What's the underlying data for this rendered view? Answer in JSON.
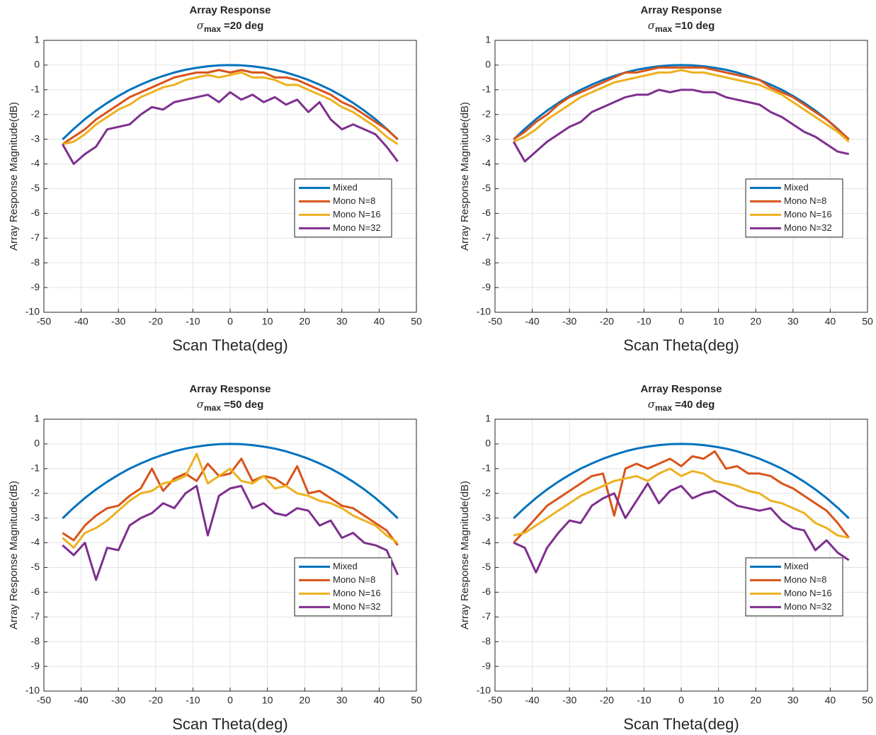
{
  "chart_data": [
    {
      "type": "line",
      "title": "Array Response",
      "subtitle": [
        "σ",
        "max",
        "=20 deg"
      ],
      "xlabel": "Scan Theta(deg)",
      "ylabel": "Array Response Magnitude(dB)",
      "x": [
        -45,
        -42,
        -39,
        -36,
        -33,
        -30,
        -27,
        -24,
        -21,
        -18,
        -15,
        -12,
        -9,
        -6,
        -3,
        0,
        3,
        6,
        9,
        12,
        15,
        18,
        21,
        24,
        27,
        30,
        33,
        36,
        39,
        42,
        45
      ],
      "series": [
        {
          "name": "Mixed",
          "color": "#0072BD",
          "values": [
            -3.01,
            -2.58,
            -2.19,
            -1.84,
            -1.53,
            -1.25,
            -1,
            -0.79,
            -0.6,
            -0.44,
            -0.3,
            -0.19,
            -0.11,
            -0.05,
            -0.01,
            0,
            -0.01,
            -0.05,
            -0.11,
            -0.19,
            -0.3,
            -0.44,
            -0.6,
            -0.79,
            -1,
            -1.25,
            -1.53,
            -1.84,
            -2.19,
            -2.58,
            -3.01
          ]
        },
        {
          "name": "Mono N=8",
          "color": "#D95319",
          "values": [
            -3.2,
            -2.9,
            -2.6,
            -2.2,
            -1.9,
            -1.6,
            -1.3,
            -1.1,
            -0.9,
            -0.7,
            -0.5,
            -0.4,
            -0.3,
            -0.3,
            -0.2,
            -0.3,
            -0.2,
            -0.3,
            -0.3,
            -0.5,
            -0.5,
            -0.6,
            -0.8,
            -1,
            -1.2,
            -1.5,
            -1.7,
            -2,
            -2.3,
            -2.6,
            -3
          ]
        },
        {
          "name": "Mono N=16",
          "color": "#EDB120",
          "values": [
            -3.2,
            -3.1,
            -2.8,
            -2.4,
            -2.1,
            -1.8,
            -1.6,
            -1.3,
            -1.1,
            -0.9,
            -0.8,
            -0.6,
            -0.5,
            -0.4,
            -0.5,
            -0.4,
            -0.3,
            -0.5,
            -0.5,
            -0.6,
            -0.8,
            -0.8,
            -1,
            -1.2,
            -1.4,
            -1.7,
            -1.9,
            -2.2,
            -2.5,
            -2.9,
            -3.2
          ]
        },
        {
          "name": "Mono N=32",
          "color": "#7E2F8E",
          "values": [
            -3.2,
            -4,
            -3.6,
            -3.3,
            -2.6,
            -2.5,
            -2.4,
            -2,
            -1.7,
            -1.8,
            -1.5,
            -1.4,
            -1.3,
            -1.2,
            -1.5,
            -1.1,
            -1.4,
            -1.2,
            -1.5,
            -1.3,
            -1.6,
            -1.4,
            -1.9,
            -1.5,
            -2.2,
            -2.6,
            -2.4,
            -2.6,
            -2.8,
            -3.3,
            -3.9
          ]
        }
      ],
      "xlim": [
        -50,
        50
      ],
      "xticks": [
        -50,
        -40,
        -30,
        -20,
        -10,
        0,
        10,
        20,
        30,
        40,
        50
      ],
      "ylim": [
        -10,
        1
      ],
      "yticks": [
        -10,
        -9,
        -8,
        -7,
        -6,
        -5,
        -4,
        -3,
        -2,
        -1,
        0,
        1
      ],
      "grid": true,
      "legend": "east"
    },
    {
      "type": "line",
      "title": "Array Response",
      "subtitle": [
        "σ",
        "max",
        "=10 deg"
      ],
      "xlabel": "Scan Theta(deg)",
      "ylabel": "Array Response Magnitude(dB)",
      "x": [
        -45,
        -42,
        -39,
        -36,
        -33,
        -30,
        -27,
        -24,
        -21,
        -18,
        -15,
        -12,
        -9,
        -6,
        -3,
        0,
        3,
        6,
        9,
        12,
        15,
        18,
        21,
        24,
        27,
        30,
        33,
        36,
        39,
        42,
        45
      ],
      "series": [
        {
          "name": "Mixed",
          "color": "#0072BD",
          "values": [
            -3.01,
            -2.58,
            -2.19,
            -1.84,
            -1.53,
            -1.25,
            -1,
            -0.79,
            -0.6,
            -0.44,
            -0.3,
            -0.19,
            -0.11,
            -0.05,
            -0.01,
            0,
            -0.01,
            -0.05,
            -0.11,
            -0.19,
            -0.3,
            -0.44,
            -0.6,
            -0.79,
            -1,
            -1.25,
            -1.53,
            -1.84,
            -2.19,
            -2.58,
            -3.01
          ]
        },
        {
          "name": "Mono N=8",
          "color": "#D95319",
          "values": [
            -3,
            -2.7,
            -2.3,
            -2,
            -1.6,
            -1.3,
            -1.1,
            -0.9,
            -0.7,
            -0.5,
            -0.3,
            -0.3,
            -0.2,
            -0.1,
            -0.1,
            -0.1,
            -0.1,
            -0.1,
            -0.2,
            -0.3,
            -0.4,
            -0.5,
            -0.6,
            -0.9,
            -1.1,
            -1.3,
            -1.6,
            -1.9,
            -2.2,
            -2.6,
            -3
          ]
        },
        {
          "name": "Mono N=16",
          "color": "#EDB120",
          "values": [
            -3.1,
            -2.9,
            -2.6,
            -2.2,
            -1.9,
            -1.6,
            -1.3,
            -1.1,
            -0.9,
            -0.7,
            -0.6,
            -0.5,
            -0.4,
            -0.3,
            -0.3,
            -0.2,
            -0.3,
            -0.3,
            -0.4,
            -0.5,
            -0.6,
            -0.7,
            -0.8,
            -1,
            -1.2,
            -1.5,
            -1.8,
            -2.1,
            -2.4,
            -2.7,
            -3.1
          ]
        },
        {
          "name": "Mono N=32",
          "color": "#7E2F8E",
          "values": [
            -3.1,
            -3.9,
            -3.5,
            -3.1,
            -2.8,
            -2.5,
            -2.3,
            -1.9,
            -1.7,
            -1.5,
            -1.3,
            -1.2,
            -1.2,
            -1,
            -1.1,
            -1,
            -1,
            -1.1,
            -1.1,
            -1.3,
            -1.4,
            -1.5,
            -1.6,
            -1.9,
            -2.1,
            -2.4,
            -2.7,
            -2.9,
            -3.2,
            -3.5,
            -3.6
          ]
        }
      ],
      "xlim": [
        -50,
        50
      ],
      "xticks": [
        -50,
        -40,
        -30,
        -20,
        -10,
        0,
        10,
        20,
        30,
        40,
        50
      ],
      "ylim": [
        -10,
        1
      ],
      "yticks": [
        -10,
        -9,
        -8,
        -7,
        -6,
        -5,
        -4,
        -3,
        -2,
        -1,
        0,
        1
      ],
      "grid": true,
      "legend": "east"
    },
    {
      "type": "line",
      "title": "Array Response",
      "subtitle": [
        "σ",
        "max",
        "=50 deg"
      ],
      "xlabel": "Scan Theta(deg)",
      "ylabel": "Array Response Magnitude(dB)",
      "x": [
        -45,
        -42,
        -39,
        -36,
        -33,
        -30,
        -27,
        -24,
        -21,
        -18,
        -15,
        -12,
        -9,
        -6,
        -3,
        0,
        3,
        6,
        9,
        12,
        15,
        18,
        21,
        24,
        27,
        30,
        33,
        36,
        39,
        42,
        45
      ],
      "series": [
        {
          "name": "Mixed",
          "color": "#0072BD",
          "values": [
            -3.01,
            -2.58,
            -2.19,
            -1.84,
            -1.53,
            -1.25,
            -1,
            -0.79,
            -0.6,
            -0.44,
            -0.3,
            -0.19,
            -0.11,
            -0.05,
            -0.01,
            0,
            -0.01,
            -0.05,
            -0.11,
            -0.19,
            -0.3,
            -0.44,
            -0.6,
            -0.79,
            -1,
            -1.25,
            -1.53,
            -1.84,
            -2.19,
            -2.58,
            -3.01
          ]
        },
        {
          "name": "Mono N=8",
          "color": "#D95319",
          "values": [
            -3.6,
            -3.9,
            -3.3,
            -2.9,
            -2.6,
            -2.5,
            -2.1,
            -1.8,
            -1,
            -1.9,
            -1.4,
            -1.2,
            -1.5,
            -0.8,
            -1.3,
            -1.2,
            -0.6,
            -1.5,
            -1.3,
            -1.4,
            -1.7,
            -0.9,
            -2,
            -1.9,
            -2.2,
            -2.5,
            -2.6,
            -2.9,
            -3.2,
            -3.5,
            -4.1
          ]
        },
        {
          "name": "Mono N=16",
          "color": "#EDB120",
          "values": [
            -3.8,
            -4.2,
            -3.6,
            -3.4,
            -3.1,
            -2.7,
            -2.3,
            -2,
            -1.9,
            -1.6,
            -1.5,
            -1.3,
            -0.4,
            -1.6,
            -1.3,
            -1,
            -1.5,
            -1.6,
            -1.3,
            -1.8,
            -1.7,
            -2,
            -2.1,
            -2.3,
            -2.4,
            -2.6,
            -2.9,
            -3.1,
            -3.3,
            -3.7,
            -4
          ]
        },
        {
          "name": "Mono N=32",
          "color": "#7E2F8E",
          "values": [
            -4.1,
            -4.5,
            -4,
            -5.5,
            -4.2,
            -4.3,
            -3.3,
            -3,
            -2.8,
            -2.4,
            -2.6,
            -2,
            -1.7,
            -3.7,
            -2.1,
            -1.8,
            -1.7,
            -2.6,
            -2.4,
            -2.8,
            -2.9,
            -2.6,
            -2.7,
            -3.3,
            -3.1,
            -3.8,
            -3.6,
            -4,
            -4.1,
            -4.3,
            -5.3
          ]
        }
      ],
      "xlim": [
        -50,
        50
      ],
      "xticks": [
        -50,
        -40,
        -30,
        -20,
        -10,
        0,
        10,
        20,
        30,
        40,
        50
      ],
      "ylim": [
        -10,
        1
      ],
      "yticks": [
        -10,
        -9,
        -8,
        -7,
        -6,
        -5,
        -4,
        -3,
        -2,
        -1,
        0,
        1
      ],
      "grid": true,
      "legend": "east"
    },
    {
      "type": "line",
      "title": "Array Response",
      "subtitle": [
        "σ",
        "max",
        "=40 deg"
      ],
      "xlabel": "Scan Theta(deg)",
      "ylabel": "Array Response Magnitude(dB)",
      "x": [
        -45,
        -42,
        -39,
        -36,
        -33,
        -30,
        -27,
        -24,
        -21,
        -18,
        -15,
        -12,
        -9,
        -6,
        -3,
        0,
        3,
        6,
        9,
        12,
        15,
        18,
        21,
        24,
        27,
        30,
        33,
        36,
        39,
        42,
        45
      ],
      "series": [
        {
          "name": "Mixed",
          "color": "#0072BD",
          "values": [
            -3.01,
            -2.58,
            -2.19,
            -1.84,
            -1.53,
            -1.25,
            -1,
            -0.79,
            -0.6,
            -0.44,
            -0.3,
            -0.19,
            -0.11,
            -0.05,
            -0.01,
            0,
            -0.01,
            -0.05,
            -0.11,
            -0.19,
            -0.3,
            -0.44,
            -0.6,
            -0.79,
            -1,
            -1.25,
            -1.53,
            -1.84,
            -2.19,
            -2.58,
            -3.01
          ]
        },
        {
          "name": "Mono N=8",
          "color": "#D95319",
          "values": [
            -4,
            -3.5,
            -3,
            -2.5,
            -2.2,
            -1.9,
            -1.6,
            -1.3,
            -1.2,
            -2.9,
            -1,
            -0.8,
            -1,
            -0.8,
            -0.6,
            -0.9,
            -0.5,
            -0.6,
            -0.3,
            -1,
            -0.9,
            -1.2,
            -1.2,
            -1.3,
            -1.6,
            -1.8,
            -2.1,
            -2.4,
            -2.7,
            -3.2,
            -3.8
          ]
        },
        {
          "name": "Mono N=16",
          "color": "#EDB120",
          "values": [
            -3.7,
            -3.6,
            -3.3,
            -3,
            -2.7,
            -2.4,
            -2.1,
            -1.9,
            -1.7,
            -1.5,
            -1.4,
            -1.3,
            -1.5,
            -1.2,
            -1,
            -1.3,
            -1.1,
            -1.2,
            -1.5,
            -1.6,
            -1.7,
            -1.9,
            -2,
            -2.3,
            -2.4,
            -2.6,
            -2.8,
            -3.2,
            -3.4,
            -3.7,
            -3.8
          ]
        },
        {
          "name": "Mono N=32",
          "color": "#7E2F8E",
          "values": [
            -4,
            -4.2,
            -5.2,
            -4.2,
            -3.6,
            -3.1,
            -3.2,
            -2.5,
            -2.2,
            -2,
            -3,
            -2.3,
            -1.6,
            -2.4,
            -1.9,
            -1.7,
            -2.2,
            -2,
            -1.9,
            -2.2,
            -2.5,
            -2.6,
            -2.7,
            -2.6,
            -3.1,
            -3.4,
            -3.5,
            -4.3,
            -3.9,
            -4.4,
            -4.7
          ]
        }
      ],
      "xlim": [
        -50,
        50
      ],
      "xticks": [
        -50,
        -40,
        -30,
        -20,
        -10,
        0,
        10,
        20,
        30,
        40,
        50
      ],
      "ylim": [
        -10,
        1
      ],
      "yticks": [
        -10,
        -9,
        -8,
        -7,
        -6,
        -5,
        -4,
        -3,
        -2,
        -1,
        0,
        1
      ],
      "grid": true,
      "legend": "east"
    }
  ]
}
